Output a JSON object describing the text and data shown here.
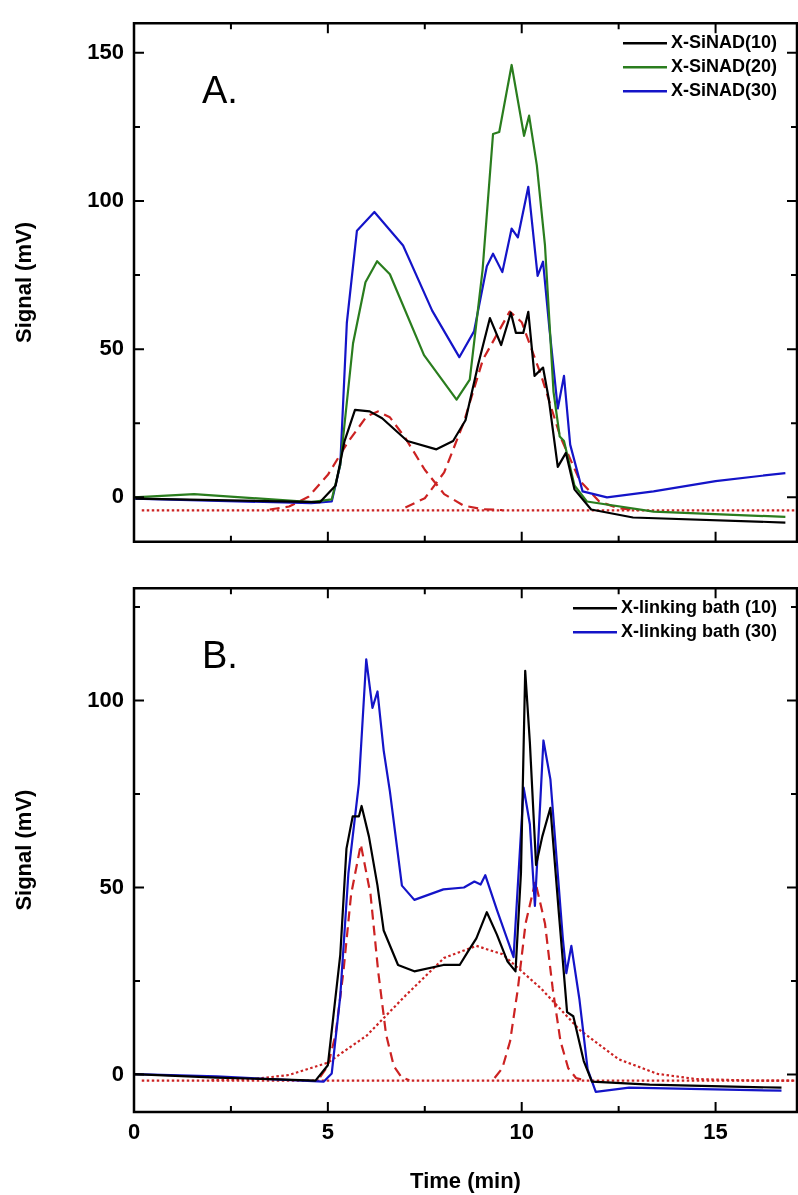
{
  "chart_data": [
    {
      "type": "line",
      "ylabel": "Signal (mV)",
      "annotations": [
        "A."
      ],
      "legend": "top right",
      "tick_labels": "y",
      "xlim": [
        0,
        17.1
      ],
      "xticks": [
        0,
        {
          "value": 2.5,
          "label": null
        },
        5,
        {
          "value": 7.5,
          "label": null
        },
        10,
        {
          "value": 12.5,
          "label": null
        },
        15
      ],
      "ylim": [
        -15,
        160
      ],
      "yticks": [
        0,
        {
          "value": 25,
          "label": null
        },
        50,
        {
          "value": 75,
          "label": null
        },
        100,
        {
          "value": 125,
          "label": null
        },
        150
      ],
      "series": [
        {
          "name": "X-SiNAD(10)",
          "color": "#000000",
          "line_style": "solid",
          "x": [
            0.04,
            4.8,
            5.2,
            5.43,
            5.7,
            6.08,
            6.4,
            7.05,
            7.8,
            8.23,
            8.55,
            8.88,
            9.18,
            9.47,
            9.72,
            9.85,
            10.04,
            10.17,
            10.33,
            10.55,
            10.7,
            10.93,
            11.14,
            11.36,
            11.79,
            12.87,
            16.8
          ],
          "values": [
            -0.4,
            -1.6,
            4,
            19,
            29.5,
            29,
            26.7,
            19,
            16.2,
            19,
            26,
            45,
            60.5,
            51.4,
            62.3,
            55.5,
            55.5,
            62.6,
            41,
            43.8,
            33,
            10.3,
            15,
            2.7,
            -4.1,
            -6.8,
            -8.5
          ]
        },
        {
          "name": "X-SiNAD(20)",
          "color": "#2a7d1e",
          "line_style": "solid",
          "x": [
            0,
            1.55,
            4.57,
            5.1,
            5.32,
            5.65,
            5.97,
            6.27,
            6.6,
            7.48,
            8.32,
            8.66,
            8.99,
            9.26,
            9.42,
            9.74,
            10.06,
            10.19,
            10.39,
            10.6,
            10.82,
            10.98,
            11.09,
            11.36,
            11.68,
            13.4,
            16.8
          ],
          "values": [
            0,
            1.1,
            -1.6,
            -0.7,
            11,
            52,
            72.6,
            79.7,
            75.3,
            48,
            33,
            39.7,
            76.7,
            122.6,
            123.3,
            145.9,
            122,
            128.8,
            112,
            85,
            35.6,
            20.5,
            19,
            4,
            -1.4,
            -4.8,
            -6.6
          ]
        },
        {
          "name": "X-SiNAD(30)",
          "color": "#1414c8",
          "line_style": "solid",
          "x": [
            0,
            4.57,
            5.1,
            5.32,
            5.49,
            5.75,
            6.2,
            6.94,
            7.69,
            8.39,
            8.77,
            9.1,
            9.26,
            9.5,
            9.74,
            9.9,
            10.17,
            10.41,
            10.55,
            10.71,
            10.93,
            11.09,
            11.25,
            11.57,
            12.2,
            13.4,
            15,
            16.8
          ],
          "values": [
            -0.4,
            -2,
            -1.4,
            11,
            59,
            90,
            96.3,
            85,
            63,
            47.3,
            56,
            78,
            82.2,
            76,
            90.7,
            87.7,
            104.8,
            74.7,
            79.5,
            57.5,
            30,
            41,
            17.8,
            2,
            0,
            2,
            5.5,
            8.2
          ]
        },
        {
          "color": "#cc2222",
          "line_style": "dashed",
          "x": [
            3.5,
            4,
            4.5,
            5,
            5.5,
            6,
            6.29,
            6.6,
            7,
            7.5,
            8,
            8.5,
            9,
            9.5
          ],
          "values": [
            -4.1,
            -3.1,
            0.2,
            7.6,
            18.3,
            27.3,
            29,
            27,
            20,
            9.3,
            1.1,
            -2.8,
            -4,
            -4.3
          ]
        },
        {
          "color": "#cc2222",
          "line_style": "dashed",
          "x": [
            7,
            7.5,
            8,
            8.5,
            9,
            9.69,
            10,
            10.5,
            11,
            11.5,
            12,
            12.5,
            13
          ],
          "values": [
            -3.4,
            -0.3,
            8.4,
            25.1,
            46.5,
            62.7,
            59.1,
            41.2,
            20.3,
            5.6,
            -1.4,
            -3.7,
            -4.3
          ]
        },
        {
          "color": "#cc2222",
          "line_style": "dotted",
          "x": [
            0.2,
            17.1
          ],
          "values": [
            -4.4,
            -4.4
          ]
        }
      ]
    },
    {
      "type": "line",
      "xlabel": "Time (min)",
      "ylabel": "Signal (mV)",
      "annotations": [
        "B."
      ],
      "legend": "top right",
      "xlim": [
        0,
        17.1
      ],
      "xticks": [
        0,
        {
          "value": 2.5,
          "label": null
        },
        5,
        {
          "value": 7.5,
          "label": null
        },
        10,
        {
          "value": 12.5,
          "label": null
        },
        15
      ],
      "ylim": [
        -10,
        130
      ],
      "yticks": [
        0,
        {
          "value": 25,
          "label": null
        },
        50,
        {
          "value": 75,
          "label": null
        },
        100,
        {
          "value": 125,
          "label": null
        }
      ],
      "series": [
        {
          "name": "X-linking bath (10)",
          "color": "#000000",
          "line_style": "solid",
          "x": [
            0,
            2.13,
            4.68,
            5,
            5.32,
            5.48,
            5.64,
            5.8,
            5.87,
            6.06,
            6.28,
            6.44,
            6.81,
            7.23,
            7.98,
            8.4,
            8.62,
            8.83,
            9.1,
            9.36,
            9.63,
            9.84,
            9.98,
            10.09,
            10.21,
            10.37,
            10.53,
            10.74,
            10.96,
            11.17,
            11.33,
            11.6,
            11.81,
            13.3,
            16.7
          ],
          "values": [
            0.1,
            -0.8,
            -1.6,
            2.5,
            32,
            60.4,
            69,
            69,
            71.8,
            63.6,
            50.5,
            38.5,
            29.3,
            27.6,
            29.3,
            29.3,
            33,
            36.4,
            43.4,
            37.4,
            30.3,
            27.6,
            53.8,
            107.9,
            88.8,
            56,
            63.6,
            71.3,
            42.9,
            16.7,
            15.6,
            3.6,
            -1.9,
            -2.7,
            -3.5
          ]
        },
        {
          "name": "X-linking bath (30)",
          "color": "#1414c8",
          "line_style": "solid",
          "x": [
            0,
            2.13,
            4.89,
            5.1,
            5.32,
            5.53,
            5.8,
            5.99,
            6.15,
            6.28,
            6.44,
            6.6,
            6.91,
            7.23,
            7.98,
            8.51,
            8.78,
            8.94,
            9.06,
            9.36,
            9.79,
            10.05,
            10.21,
            10.34,
            10.56,
            10.74,
            11.06,
            11.15,
            11.28,
            11.49,
            11.7,
            11.91,
            12.77,
            16.7
          ],
          "values": [
            0.1,
            -0.5,
            -1.9,
            0.3,
            21,
            53.8,
            77.8,
            111,
            98,
            102.4,
            86.6,
            75.7,
            50.5,
            46.7,
            49.5,
            50,
            51.6,
            50.8,
            53.3,
            44,
            31.4,
            76.7,
            66.9,
            45.1,
            89.3,
            78.9,
            36.4,
            27.1,
            34.4,
            20,
            1.4,
            -4.6,
            -3.5,
            -4.3
          ]
        },
        {
          "color": "#cc2222",
          "line_style": "dashed",
          "x": [
            4.8,
            5,
            5.2,
            5.4,
            5.6,
            5.85,
            6.1,
            6.3,
            6.5,
            6.7,
            6.9,
            7.1
          ],
          "values": [
            -0.7,
            2.3,
            10.8,
            27.4,
            48.2,
            61.5,
            48.2,
            27.4,
            10.8,
            2.3,
            -0.7,
            -1.5
          ]
        },
        {
          "color": "#cc2222",
          "line_style": "dashed",
          "x": [
            9.3,
            9.5,
            9.7,
            9.9,
            10.1,
            10.35,
            10.6,
            10.8,
            11,
            11.2,
            11.4,
            11.6
          ],
          "values": [
            -0.9,
            1.7,
            8.9,
            22.9,
            40.4,
            51.6,
            40.4,
            22.9,
            8.9,
            1.7,
            -0.9,
            -1.5
          ]
        },
        {
          "color": "#cc2222",
          "line_style": "dotted",
          "x": [
            2,
            3,
            4,
            5,
            6,
            7,
            8,
            8.83,
            9.5,
            10.5,
            11.5,
            12.5,
            13.5,
            14.5,
            16,
            17
          ],
          "values": [
            -1.5,
            -1.3,
            -0.1,
            3.2,
            10.4,
            21.1,
            31.2,
            34.4,
            32.2,
            23,
            11.9,
            4.1,
            0.2,
            -1.2,
            -1.6,
            -1.6
          ]
        },
        {
          "color": "#cc2222",
          "line_style": "dotted",
          "x": [
            0.2,
            17.1
          ],
          "values": [
            -1.6,
            -1.6
          ]
        }
      ]
    }
  ]
}
